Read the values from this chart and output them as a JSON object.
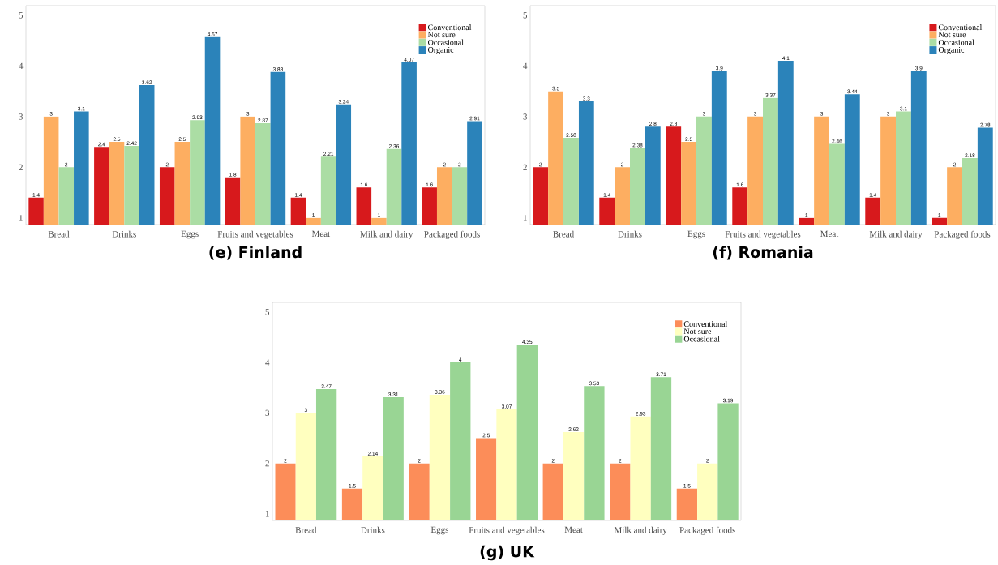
{
  "chart_data": [
    {
      "type": "bar",
      "title": "(e) Finland",
      "categories": [
        "Bread",
        "Drinks",
        "Eggs",
        "Fruits and vegetables",
        "Meat",
        "Milk and dairy",
        "Packaged foods"
      ],
      "series": [
        {
          "name": "Conventional",
          "color": "#d7191c",
          "values": [
            1.4,
            2.4,
            2,
            1.8,
            1.4,
            1.6,
            1.6
          ]
        },
        {
          "name": "Not sure",
          "color": "#fdae61",
          "values": [
            3,
            2.5,
            2.5,
            3,
            1,
            1,
            2
          ]
        },
        {
          "name": "Occasional",
          "color": "#abdda4",
          "values": [
            2,
            2.42,
            2.93,
            2.87,
            2.21,
            2.36,
            2
          ]
        },
        {
          "name": "Organic",
          "color": "#2b83ba",
          "values": [
            3.1,
            3.62,
            4.57,
            3.88,
            3.24,
            4.07,
            2.91
          ]
        }
      ],
      "ylim": [
        0.87,
        5.19
      ],
      "yticks": [
        1,
        2,
        3,
        4,
        5
      ],
      "data_labels": true,
      "legend": "top right",
      "grid": false
    },
    {
      "type": "bar",
      "title": "(f) Romania",
      "categories": [
        "Bread",
        "Drinks",
        "Eggs",
        "Fruits and vegetables",
        "Meat",
        "Milk and dairy",
        "Packaged foods"
      ],
      "series": [
        {
          "name": "Conventional",
          "color": "#d7191c",
          "values": [
            2,
            1.4,
            2.8,
            1.6,
            1,
            1.4,
            1
          ]
        },
        {
          "name": "Not sure",
          "color": "#fdae61",
          "values": [
            3.5,
            2,
            2.5,
            3,
            3,
            3,
            2
          ]
        },
        {
          "name": "Occasional",
          "color": "#abdda4",
          "values": [
            2.58,
            2.38,
            3,
            3.37,
            2.46,
            3.1,
            2.18
          ]
        },
        {
          "name": "Organic",
          "color": "#2b83ba",
          "values": [
            3.3,
            2.8,
            3.9,
            4.1,
            3.44,
            3.9,
            2.78
          ]
        }
      ],
      "ylim": [
        0.87,
        5.19
      ],
      "yticks": [
        1,
        2,
        3,
        4,
        5
      ],
      "data_labels": true,
      "legend": "top right",
      "grid": false
    },
    {
      "type": "bar",
      "title": "(g) UK",
      "categories": [
        "Bread",
        "Drinks",
        "Eggs",
        "Fruits and vegetables",
        "Meat",
        "Milk and dairy",
        "Packaged foods"
      ],
      "series": [
        {
          "name": "Conventional",
          "color": "#fc8d59",
          "values": [
            2,
            1.5,
            2,
            2.5,
            2,
            2,
            1.5
          ]
        },
        {
          "name": "Not sure",
          "color": "#ffffbf",
          "values": [
            3,
            2.14,
            3.36,
            3.07,
            2.62,
            2.93,
            2
          ]
        },
        {
          "name": "Occasional",
          "color": "#99d594",
          "values": [
            3.47,
            3.31,
            4,
            4.35,
            3.53,
            3.71,
            3.19
          ]
        }
      ],
      "ylim": [
        0.87,
        5.19
      ],
      "yticks": [
        1,
        2,
        3,
        4,
        5
      ],
      "data_labels": true,
      "legend": "top right",
      "grid": false
    }
  ]
}
